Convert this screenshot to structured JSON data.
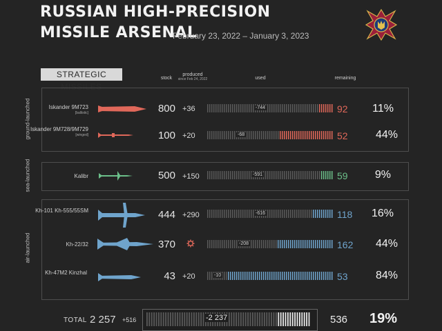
{
  "header": {
    "title_line1": "RUSSIAN HIGH-PRECISION",
    "title_line2": "MISSILE ARSENAL",
    "date_range": "February 23, 2022 – January 3, 2023"
  },
  "section_badge": "STRATEGIC MISSILES",
  "columns": {
    "stock": "stock",
    "produced": "produced",
    "produced_sub": "since Feb 24, 2022",
    "used": "used",
    "remaining": "remaining"
  },
  "groups": [
    {
      "label": "ground-launched",
      "color": "#e0685a"
    },
    {
      "label": "sea-launched",
      "color": "#6cc08a"
    },
    {
      "label": "air-launched",
      "color": "#6fa4cc"
    }
  ],
  "colors": {
    "ground": "#e0685a",
    "sea": "#6cc08a",
    "air": "#6fa4cc",
    "total": "#e8e8e8"
  },
  "chart_data": {
    "type": "table",
    "rows": [
      {
        "name": "Iskander 9M723",
        "sub": "[ballistic]",
        "group": "ground-launched",
        "stock": "800",
        "produced": "+36",
        "used": "-744",
        "remaining": "92",
        "remaining_pct": "11%",
        "used_n": 744,
        "remaining_n": 92
      },
      {
        "name": "Iskander 9M728/9M729",
        "sub": "[winged]",
        "group": "ground-launched",
        "stock": "100",
        "produced": "+20",
        "used": "-68",
        "remaining": "52",
        "remaining_pct": "44%",
        "used_n": 68,
        "remaining_n": 52
      },
      {
        "name": "Kalibr",
        "sub": "",
        "group": "sea-launched",
        "stock": "500",
        "produced": "+150",
        "used": "-591",
        "remaining": "59",
        "remaining_pct": "9%",
        "used_n": 591,
        "remaining_n": 59
      },
      {
        "name": "Kh-101 Kh-555/55SM",
        "sub": "",
        "group": "air-launched",
        "stock": "444",
        "produced": "+290",
        "used": "-616",
        "remaining": "118",
        "remaining_pct": "16%",
        "used_n": 616,
        "remaining_n": 118
      },
      {
        "name": "Kh-22/32",
        "sub": "",
        "group": "air-launched",
        "stock": "370",
        "produced": "",
        "used": "-208",
        "remaining": "162",
        "remaining_pct": "44%",
        "used_n": 208,
        "remaining_n": 162
      },
      {
        "name": "Kh-47M2 Kinzhal",
        "sub": "",
        "group": "air-launched",
        "stock": "43",
        "produced": "+20",
        "used": "-10",
        "remaining": "53",
        "remaining_pct": "84%",
        "used_n": 10,
        "remaining_n": 53
      }
    ],
    "total": {
      "label": "TOTAL",
      "stock": "2 257",
      "produced": "+516",
      "used": "-2 237",
      "remaining": "536",
      "remaining_pct": "19%",
      "used_n": 2237,
      "remaining_n": 536
    }
  }
}
